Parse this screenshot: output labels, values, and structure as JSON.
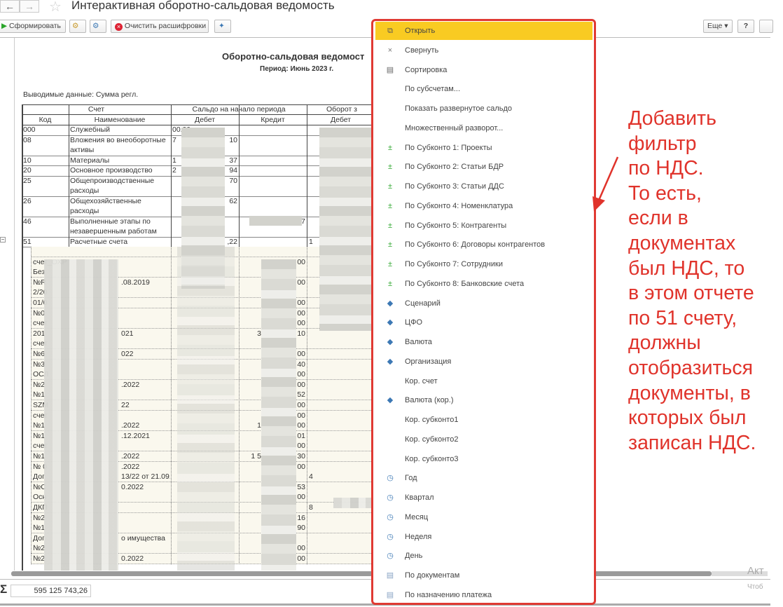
{
  "window": {
    "title": "Интерактивная оборотно-сальдовая ведомость",
    "back_icon": "arrow-left",
    "forward_icon": "arrow-right",
    "favorite_icon": "star"
  },
  "toolbar": {
    "generate": "Сформировать",
    "clear": "Очистить расшифровки",
    "more": "Еще",
    "help": "?"
  },
  "report": {
    "title": "Оборотно-сальдовая ведомост",
    "period": "Период: Июнь 2023 г.",
    "output": "Выводимые данные: Сумма регл.",
    "headers": {
      "account": "Счет",
      "opening": "Сальдо на начало периода",
      "turnover": "Оборот з",
      "code": "Код",
      "name": "Наименование",
      "debit": "Дебет",
      "credit": "Кредит",
      "t_debit": "Дебет"
    },
    "rows": [
      {
        "code": "000",
        "name": "Служебный",
        "debit": "00.99",
        "credit": "",
        "turnover": ""
      },
      {
        "code": "08",
        "name": "Вложения во внеоборотные активы",
        "debit": "7",
        "debit_end": "10",
        "credit": "",
        "turnover": ""
      },
      {
        "code": "10",
        "name": "Материалы",
        "debit": "1",
        "debit_end": "37",
        "credit": "",
        "turnover": ""
      },
      {
        "code": "20",
        "name": "Основное производство",
        "debit": "2",
        "debit_end": "94",
        "credit": "",
        "turnover": ""
      },
      {
        "code": "25",
        "name": "Общепроизводственные расходы",
        "debit": "",
        "debit_end": "70",
        "credit": "",
        "turnover": ""
      },
      {
        "code": "26",
        "name": "Общехозяйственные расходы",
        "debit": "",
        "debit_end": "62",
        "credit": "",
        "turnover": ""
      },
      {
        "code": "46",
        "name": "Выполненные этапы по незавершенным работам",
        "debit": "",
        "debit_end": "",
        "credit": "7",
        "turnover": ""
      },
      {
        "code": "51",
        "name": "Расчетные счета",
        "debit": "",
        "debit_end": ",22",
        "credit": "",
        "turnover": "1"
      }
    ],
    "details": [
      {
        "a": "",
        "b": "",
        "c1": "",
        "c2": "",
        "t": ""
      },
      {
        "a": "счет_ОХР",
        "b": "",
        "c1": "",
        "c2": "00",
        "t": ""
      },
      {
        "a": "Без",
        "b": "",
        "c1": "",
        "c2": "",
        "t": ""
      },
      {
        "a": "№R",
        "b": ".08.2019",
        "c1": "",
        "c2": "00",
        "t": ""
      },
      {
        "a": "2/20",
        "b": "",
        "c1": "",
        "c2": "",
        "t": ""
      },
      {
        "a": "01/0",
        "b": "",
        "c1": "",
        "c2": "00",
        "t": ""
      },
      {
        "a": "№0",
        "b": "",
        "c1": "",
        "c2": "00",
        "t": ""
      },
      {
        "a": "счет",
        "b": "",
        "c1": "",
        "c2": "00",
        "t": ""
      },
      {
        "a": "201",
        "b": "021",
        "c1": "3",
        "c2": "10",
        "t": ""
      },
      {
        "a": "счет",
        "b": "",
        "c1": "",
        "c2": "",
        "t": ""
      },
      {
        "a": "№6",
        "b": "022",
        "c1": "",
        "c2": "00",
        "t": ""
      },
      {
        "a": "№3",
        "b": "",
        "c1": "",
        "c2": "40",
        "t": ""
      },
      {
        "a": "ОСЛ",
        "b": "",
        "c1": "",
        "c2": "00",
        "t": ""
      },
      {
        "a": "№2",
        "b": ".2022",
        "c1": "",
        "c2": "00",
        "t": ""
      },
      {
        "a": "№1",
        "b": "",
        "c1": "",
        "c2": "52",
        "t": ""
      },
      {
        "a": "SZM",
        "b": "22",
        "c1": "",
        "c2": "00",
        "t": ""
      },
      {
        "a": "счет",
        "b": "",
        "c1": "",
        "c2": "00",
        "t": ""
      },
      {
        "a": "№1",
        "b": ".2022",
        "c1": "1",
        "c2": "00",
        "t": ""
      },
      {
        "a": "№1",
        "b": ".12.2021",
        "c1": "",
        "c2": "01",
        "t": ""
      },
      {
        "a": "счет",
        "b": "",
        "c1": "",
        "c2": "00",
        "t": ""
      },
      {
        "a": "№1",
        "b": ".2022",
        "c1": "1 5",
        "c2": "30",
        "t": ""
      },
      {
        "a": "№ 0",
        "b": ".2022",
        "c1": "",
        "c2": "00",
        "t": ""
      },
      {
        "a": "Дог",
        "b": "13/22 от 21.09.",
        "c1": "",
        "c2": "",
        "t": "4"
      },
      {
        "a": "№С",
        "b": "0.2022",
        "c1": "",
        "c2": "53",
        "t": ""
      },
      {
        "a": "Осн",
        "b": "",
        "c1": "",
        "c2": "00",
        "t": ""
      },
      {
        "a": "ДКП",
        "b": "",
        "c1": "",
        "c2": "",
        "t": "8"
      },
      {
        "a": "№2",
        "b": "",
        "c1": "",
        "c2": "16",
        "t": ""
      },
      {
        "a": "№1",
        "b": "",
        "c1": "",
        "c2": "90",
        "t": ""
      },
      {
        "a": "Дог",
        "b": "о имущества",
        "c1": "",
        "c2": "",
        "t": ""
      },
      {
        "a": "№2",
        "b": "",
        "c1": "",
        "c2": "00",
        "t": ""
      },
      {
        "a": "№2",
        "b": "0.2022",
        "c1": "",
        "c2": "00",
        "t": ""
      }
    ]
  },
  "footer": {
    "sum_symbol": "Σ",
    "sum_value": "595 125 743,26",
    "watermark1": "Акт",
    "watermark2": "Чтоб"
  },
  "menu": {
    "items": [
      {
        "label": "Открыть",
        "icon": "open",
        "selected": true
      },
      {
        "label": "Свернуть",
        "icon": "close"
      },
      {
        "label": "Сортировка",
        "icon": "sort"
      },
      {
        "label": "По субсчетам...",
        "icon": ""
      },
      {
        "label": "Показать развернутое сальдо",
        "icon": ""
      },
      {
        "label": "Множественный разворот...",
        "icon": ""
      },
      {
        "label": "По Субконто 1: Проекты",
        "icon": "add-green"
      },
      {
        "label": "По Субконто 2: Статьи БДР",
        "icon": "add-green"
      },
      {
        "label": "По Субконто 3: Статьи ДДС",
        "icon": "add-green"
      },
      {
        "label": "По Субконто 4: Номенклатура",
        "icon": "add-green"
      },
      {
        "label": "По Субконто 5: Контрагенты",
        "icon": "add-green"
      },
      {
        "label": "По Субконто 6: Договоры контрагентов",
        "icon": "add-green"
      },
      {
        "label": "По Субконто 7: Сотрудники",
        "icon": "add-green"
      },
      {
        "label": "По Субконто 8: Банковские счета",
        "icon": "add-green"
      },
      {
        "label": "Сценарий",
        "icon": "diamond"
      },
      {
        "label": "ЦФО",
        "icon": "diamond"
      },
      {
        "label": "Валюта",
        "icon": "diamond"
      },
      {
        "label": "Организация",
        "icon": "diamond"
      },
      {
        "label": "Кор. счет",
        "icon": ""
      },
      {
        "label": "Валюта (кор.)",
        "icon": "diamond"
      },
      {
        "label": "Кор. субконто1",
        "icon": ""
      },
      {
        "label": "Кор. субконто2",
        "icon": ""
      },
      {
        "label": "Кор. субконто3",
        "icon": ""
      },
      {
        "label": "Год",
        "icon": "clock"
      },
      {
        "label": "Квартал",
        "icon": "clock"
      },
      {
        "label": "Месяц",
        "icon": "clock"
      },
      {
        "label": "Неделя",
        "icon": "clock"
      },
      {
        "label": "День",
        "icon": "clock"
      },
      {
        "label": "По документам",
        "icon": "document"
      },
      {
        "label": "По назначению платежа",
        "icon": "document"
      }
    ]
  },
  "annotation": {
    "lines": [
      "Добавить",
      "фильтр",
      "по НДС.",
      "То есть,",
      "если в",
      "документах",
      "был НДС, то",
      "в этом отчете",
      "по 51 счету,",
      "должны",
      "отобразиться",
      "документы, в",
      "которых был",
      "записан НДС."
    ]
  },
  "colors": {
    "highlight": "#f9cb22",
    "annotation": "#e0332b",
    "green": "#2aa52a",
    "blue": "#3c78b4"
  }
}
